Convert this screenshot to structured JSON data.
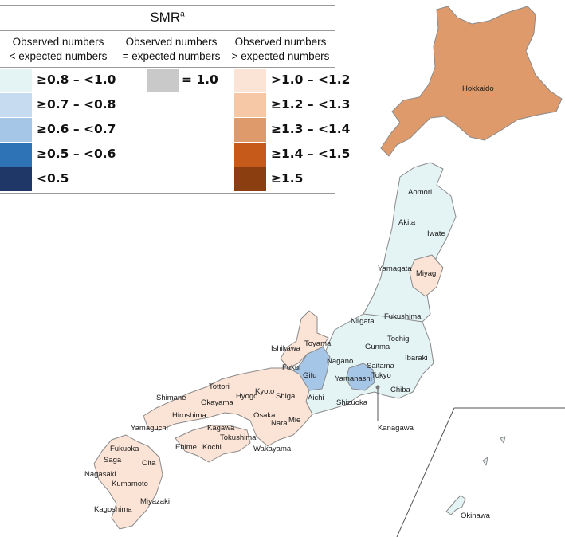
{
  "legend": {
    "title": "SMR",
    "title_sup": "a",
    "columns": [
      {
        "line1": "Observed numbers",
        "line2": "< expected numbers"
      },
      {
        "line1": "Observed numbers",
        "line2": "= expected numbers"
      },
      {
        "line1": "Observed numbers",
        "line2": "> expected numbers"
      }
    ],
    "lower": [
      {
        "label": "≥0.8 – <1.0",
        "color": "#e4f4f5"
      },
      {
        "label": "≥0.7 – <0.8",
        "color": "#c6daf0"
      },
      {
        "label": "≥0.6 – <0.7",
        "color": "#a6c6e8"
      },
      {
        "label": "≥0.5 – <0.6",
        "color": "#2d73b5"
      },
      {
        "label": "<0.5",
        "color": "#1e3766"
      }
    ],
    "equal": [
      {
        "label": "= 1.0",
        "color": "#c9c9c9"
      }
    ],
    "higher": [
      {
        "label": ">1.0 – <1.2",
        "color": "#fbe4d6"
      },
      {
        "label": "≥1.2 – <1.3",
        "color": "#f6c8a6"
      },
      {
        "label": "≥1.3 – <1.4",
        "color": "#df9a6b"
      },
      {
        "label": "≥1.4 – <1.5",
        "color": "#c65a1a"
      },
      {
        "label": "≥1.5",
        "color": "#8b3e10"
      }
    ]
  },
  "map": {
    "colors": {
      "hokkaido": "#df9a6b",
      "light_blue": "#e4f4f5",
      "mid_blue": "#a6c6e8",
      "peach": "#fbe4d6"
    },
    "prefectures": {
      "hokkaido": "Hokkaido",
      "aomori": "Aomori",
      "akita": "Akita",
      "iwate": "Iwate",
      "yamagata": "Yamagata",
      "miyagi": "Miyagi",
      "niigata": "Niigata",
      "fukushima": "Fukushima",
      "tochigi": "Tochigi",
      "gunma": "Gunma",
      "ibaraki": "Ibaraki",
      "saitama": "Saitama",
      "tokyo": "Tokyo",
      "chiba": "Chiba",
      "kanagawa": "Kanagawa",
      "yamanashi": "Yamanashi",
      "nagano": "Nagano",
      "shizuoka": "Shizuoka",
      "aichi": "Aichi",
      "gifu": "Gifu",
      "toyama": "Toyama",
      "ishikawa": "Ishikawa",
      "fukui": "Fukui",
      "shiga": "Shiga",
      "kyoto": "Kyoto",
      "mie": "Mie",
      "nara": "Nara",
      "osaka": "Osaka",
      "hyogo": "Hyogo",
      "wakayama": "Wakayama",
      "tottori": "Tottori",
      "shimane": "Shimane",
      "okayama": "Okayama",
      "hiroshima": "Hiroshima",
      "yamaguchi": "Yamaguchi",
      "kagawa": "Kagawa",
      "tokushima": "Tokushima",
      "ehime": "Ehime",
      "kochi": "Kochi",
      "fukuoka": "Fukuoka",
      "saga": "Saga",
      "nagasaki": "Nagasaki",
      "oita": "Oita",
      "kumamoto": "Kumamoto",
      "miyazaki": "Miyazaki",
      "kagoshima": "Kagoshima",
      "okinawa": "Okinawa"
    }
  }
}
